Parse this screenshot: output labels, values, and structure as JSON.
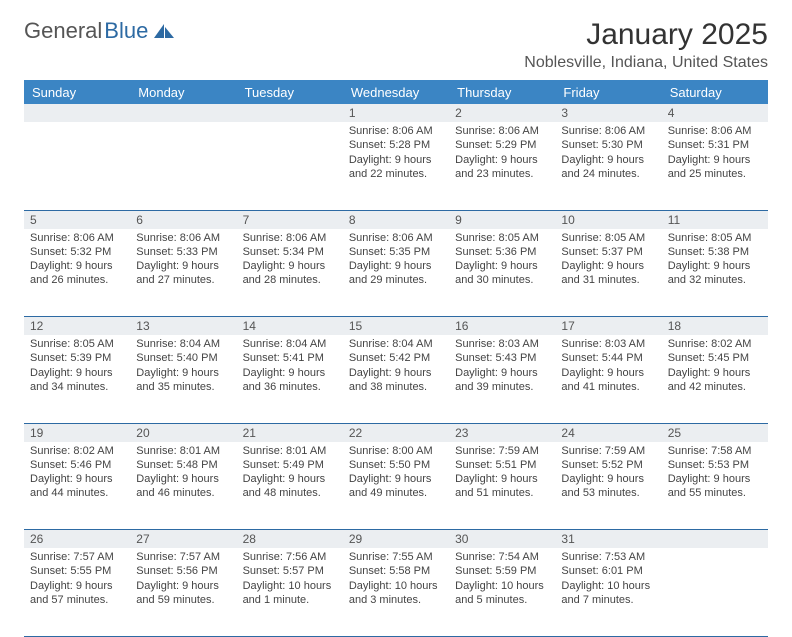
{
  "logo": {
    "text1": "General",
    "text2": "Blue"
  },
  "title": "January 2025",
  "location": "Noblesville, Indiana, United States",
  "headers": [
    "Sunday",
    "Monday",
    "Tuesday",
    "Wednesday",
    "Thursday",
    "Friday",
    "Saturday"
  ],
  "colors": {
    "header_bg": "#3b85c4",
    "header_text": "#ffffff",
    "daynum_bg": "#ebeef1",
    "border": "#2d6aa3",
    "logo_accent": "#2d6aa3"
  },
  "weeks": [
    [
      {
        "n": "",
        "l1": "",
        "l2": "",
        "l3": "",
        "l4": ""
      },
      {
        "n": "",
        "l1": "",
        "l2": "",
        "l3": "",
        "l4": ""
      },
      {
        "n": "",
        "l1": "",
        "l2": "",
        "l3": "",
        "l4": ""
      },
      {
        "n": "1",
        "l1": "Sunrise: 8:06 AM",
        "l2": "Sunset: 5:28 PM",
        "l3": "Daylight: 9 hours",
        "l4": "and 22 minutes."
      },
      {
        "n": "2",
        "l1": "Sunrise: 8:06 AM",
        "l2": "Sunset: 5:29 PM",
        "l3": "Daylight: 9 hours",
        "l4": "and 23 minutes."
      },
      {
        "n": "3",
        "l1": "Sunrise: 8:06 AM",
        "l2": "Sunset: 5:30 PM",
        "l3": "Daylight: 9 hours",
        "l4": "and 24 minutes."
      },
      {
        "n": "4",
        "l1": "Sunrise: 8:06 AM",
        "l2": "Sunset: 5:31 PM",
        "l3": "Daylight: 9 hours",
        "l4": "and 25 minutes."
      }
    ],
    [
      {
        "n": "5",
        "l1": "Sunrise: 8:06 AM",
        "l2": "Sunset: 5:32 PM",
        "l3": "Daylight: 9 hours",
        "l4": "and 26 minutes."
      },
      {
        "n": "6",
        "l1": "Sunrise: 8:06 AM",
        "l2": "Sunset: 5:33 PM",
        "l3": "Daylight: 9 hours",
        "l4": "and 27 minutes."
      },
      {
        "n": "7",
        "l1": "Sunrise: 8:06 AM",
        "l2": "Sunset: 5:34 PM",
        "l3": "Daylight: 9 hours",
        "l4": "and 28 minutes."
      },
      {
        "n": "8",
        "l1": "Sunrise: 8:06 AM",
        "l2": "Sunset: 5:35 PM",
        "l3": "Daylight: 9 hours",
        "l4": "and 29 minutes."
      },
      {
        "n": "9",
        "l1": "Sunrise: 8:05 AM",
        "l2": "Sunset: 5:36 PM",
        "l3": "Daylight: 9 hours",
        "l4": "and 30 minutes."
      },
      {
        "n": "10",
        "l1": "Sunrise: 8:05 AM",
        "l2": "Sunset: 5:37 PM",
        "l3": "Daylight: 9 hours",
        "l4": "and 31 minutes."
      },
      {
        "n": "11",
        "l1": "Sunrise: 8:05 AM",
        "l2": "Sunset: 5:38 PM",
        "l3": "Daylight: 9 hours",
        "l4": "and 32 minutes."
      }
    ],
    [
      {
        "n": "12",
        "l1": "Sunrise: 8:05 AM",
        "l2": "Sunset: 5:39 PM",
        "l3": "Daylight: 9 hours",
        "l4": "and 34 minutes."
      },
      {
        "n": "13",
        "l1": "Sunrise: 8:04 AM",
        "l2": "Sunset: 5:40 PM",
        "l3": "Daylight: 9 hours",
        "l4": "and 35 minutes."
      },
      {
        "n": "14",
        "l1": "Sunrise: 8:04 AM",
        "l2": "Sunset: 5:41 PM",
        "l3": "Daylight: 9 hours",
        "l4": "and 36 minutes."
      },
      {
        "n": "15",
        "l1": "Sunrise: 8:04 AM",
        "l2": "Sunset: 5:42 PM",
        "l3": "Daylight: 9 hours",
        "l4": "and 38 minutes."
      },
      {
        "n": "16",
        "l1": "Sunrise: 8:03 AM",
        "l2": "Sunset: 5:43 PM",
        "l3": "Daylight: 9 hours",
        "l4": "and 39 minutes."
      },
      {
        "n": "17",
        "l1": "Sunrise: 8:03 AM",
        "l2": "Sunset: 5:44 PM",
        "l3": "Daylight: 9 hours",
        "l4": "and 41 minutes."
      },
      {
        "n": "18",
        "l1": "Sunrise: 8:02 AM",
        "l2": "Sunset: 5:45 PM",
        "l3": "Daylight: 9 hours",
        "l4": "and 42 minutes."
      }
    ],
    [
      {
        "n": "19",
        "l1": "Sunrise: 8:02 AM",
        "l2": "Sunset: 5:46 PM",
        "l3": "Daylight: 9 hours",
        "l4": "and 44 minutes."
      },
      {
        "n": "20",
        "l1": "Sunrise: 8:01 AM",
        "l2": "Sunset: 5:48 PM",
        "l3": "Daylight: 9 hours",
        "l4": "and 46 minutes."
      },
      {
        "n": "21",
        "l1": "Sunrise: 8:01 AM",
        "l2": "Sunset: 5:49 PM",
        "l3": "Daylight: 9 hours",
        "l4": "and 48 minutes."
      },
      {
        "n": "22",
        "l1": "Sunrise: 8:00 AM",
        "l2": "Sunset: 5:50 PM",
        "l3": "Daylight: 9 hours",
        "l4": "and 49 minutes."
      },
      {
        "n": "23",
        "l1": "Sunrise: 7:59 AM",
        "l2": "Sunset: 5:51 PM",
        "l3": "Daylight: 9 hours",
        "l4": "and 51 minutes."
      },
      {
        "n": "24",
        "l1": "Sunrise: 7:59 AM",
        "l2": "Sunset: 5:52 PM",
        "l3": "Daylight: 9 hours",
        "l4": "and 53 minutes."
      },
      {
        "n": "25",
        "l1": "Sunrise: 7:58 AM",
        "l2": "Sunset: 5:53 PM",
        "l3": "Daylight: 9 hours",
        "l4": "and 55 minutes."
      }
    ],
    [
      {
        "n": "26",
        "l1": "Sunrise: 7:57 AM",
        "l2": "Sunset: 5:55 PM",
        "l3": "Daylight: 9 hours",
        "l4": "and 57 minutes."
      },
      {
        "n": "27",
        "l1": "Sunrise: 7:57 AM",
        "l2": "Sunset: 5:56 PM",
        "l3": "Daylight: 9 hours",
        "l4": "and 59 minutes."
      },
      {
        "n": "28",
        "l1": "Sunrise: 7:56 AM",
        "l2": "Sunset: 5:57 PM",
        "l3": "Daylight: 10 hours",
        "l4": "and 1 minute."
      },
      {
        "n": "29",
        "l1": "Sunrise: 7:55 AM",
        "l2": "Sunset: 5:58 PM",
        "l3": "Daylight: 10 hours",
        "l4": "and 3 minutes."
      },
      {
        "n": "30",
        "l1": "Sunrise: 7:54 AM",
        "l2": "Sunset: 5:59 PM",
        "l3": "Daylight: 10 hours",
        "l4": "and 5 minutes."
      },
      {
        "n": "31",
        "l1": "Sunrise: 7:53 AM",
        "l2": "Sunset: 6:01 PM",
        "l3": "Daylight: 10 hours",
        "l4": "and 7 minutes."
      },
      {
        "n": "",
        "l1": "",
        "l2": "",
        "l3": "",
        "l4": ""
      }
    ]
  ]
}
